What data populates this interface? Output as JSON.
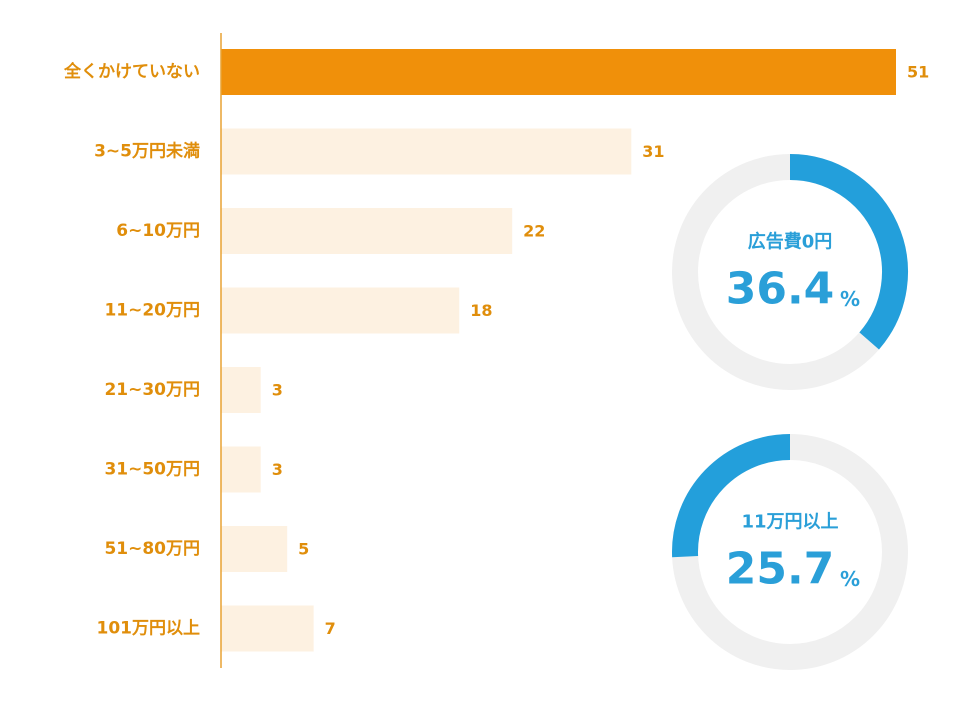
{
  "colors": {
    "highlight_bar": "#f0900a",
    "normal_bar": "#fdf1e1",
    "axis_line": "#e8a233",
    "label_text": "#e08e0b",
    "donut_track": "#f0f0f0",
    "donut_fill": "#239fdb"
  },
  "chart_data": [
    {
      "type": "bar",
      "orientation": "horizontal",
      "categories": [
        "全くかけていない",
        "3~5万円未満",
        "6~10万円",
        "11~20万円",
        "21~30万円",
        "31~50万円",
        "51~80万円",
        "101万円以上"
      ],
      "values": [
        51,
        31,
        22,
        18,
        3,
        3,
        5,
        7
      ],
      "highlighted_index": 0,
      "xlim": [
        0,
        51
      ],
      "grid": false
    },
    {
      "type": "pie",
      "style": "donut",
      "title": "広告費0円",
      "value": 36.4,
      "value_label": "36.4",
      "unit": "%"
    },
    {
      "type": "pie",
      "style": "donut",
      "title": "11万円以上",
      "value": 25.7,
      "value_label": "25.7",
      "unit": "%"
    }
  ]
}
